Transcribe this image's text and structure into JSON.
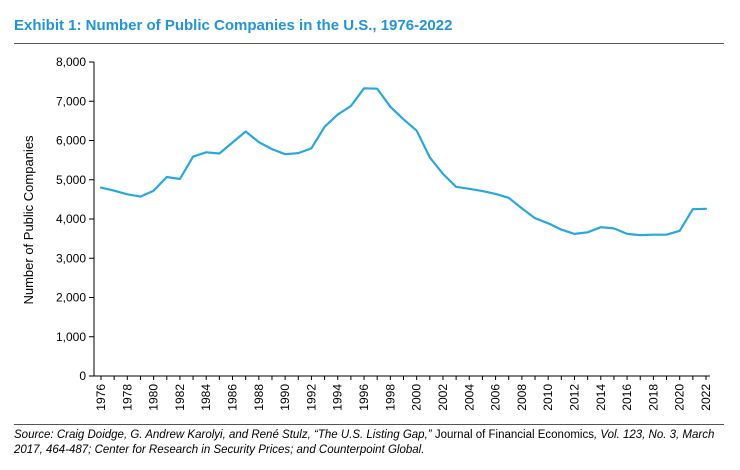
{
  "title": "Exhibit 1: Number of Public Companies in the U.S., 1976-2022",
  "source": {
    "part1": "Source: Craig Doidge, G. Andrew Karolyi, and René Stulz, “The U.S. Listing Gap,”",
    "journal": "Journal of Financial Economics",
    "part2": ", Vol. 123, No. 3, March 2017, 464-487; Center for Research in Security Prices; and Counterpoint Global."
  },
  "colors": {
    "title": "#2196d3",
    "line": "#29a8dc",
    "axis": "#000000"
  },
  "chart_data": {
    "type": "line",
    "title": "Number of Public Companies in the U.S., 1976-2022",
    "xlabel": "",
    "ylabel": "Number of Public Companies",
    "ylim": [
      0,
      8000
    ],
    "yticks": [
      0,
      1000,
      2000,
      3000,
      4000,
      5000,
      6000,
      7000,
      8000
    ],
    "ytick_labels": [
      "0",
      "1,000",
      "2,000",
      "3,000",
      "4,000",
      "5,000",
      "6,000",
      "7,000",
      "8,000"
    ],
    "xlim": [
      1976,
      2022
    ],
    "xtick_labels": [
      "1976",
      "1978",
      "1980",
      "1982",
      "1984",
      "1986",
      "1988",
      "1990",
      "1992",
      "1994",
      "1996",
      "1998",
      "2000",
      "2002",
      "2004",
      "2006",
      "2008",
      "2010",
      "2012",
      "2014",
      "2016",
      "2018",
      "2020",
      "2022"
    ],
    "grid": false,
    "series": [
      {
        "name": "Number of Public Companies",
        "x": [
          1976,
          1977,
          1978,
          1979,
          1980,
          1981,
          1982,
          1983,
          1984,
          1985,
          1986,
          1987,
          1988,
          1989,
          1990,
          1991,
          1992,
          1993,
          1994,
          1995,
          1996,
          1997,
          1998,
          1999,
          2000,
          2001,
          2002,
          2003,
          2004,
          2005,
          2006,
          2007,
          2008,
          2009,
          2010,
          2011,
          2012,
          2013,
          2014,
          2015,
          2016,
          2017,
          2018,
          2019,
          2020,
          2021,
          2022
        ],
        "values": [
          4800,
          4720,
          4630,
          4570,
          4720,
          5070,
          5020,
          5590,
          5700,
          5670,
          5950,
          6230,
          5960,
          5780,
          5650,
          5680,
          5800,
          6350,
          6660,
          6880,
          7330,
          7320,
          6860,
          6540,
          6250,
          5570,
          5150,
          4820,
          4770,
          4710,
          4640,
          4540,
          4270,
          4020,
          3890,
          3730,
          3620,
          3660,
          3790,
          3760,
          3620,
          3590,
          3600,
          3600,
          3700,
          4250,
          4260
        ]
      }
    ]
  }
}
